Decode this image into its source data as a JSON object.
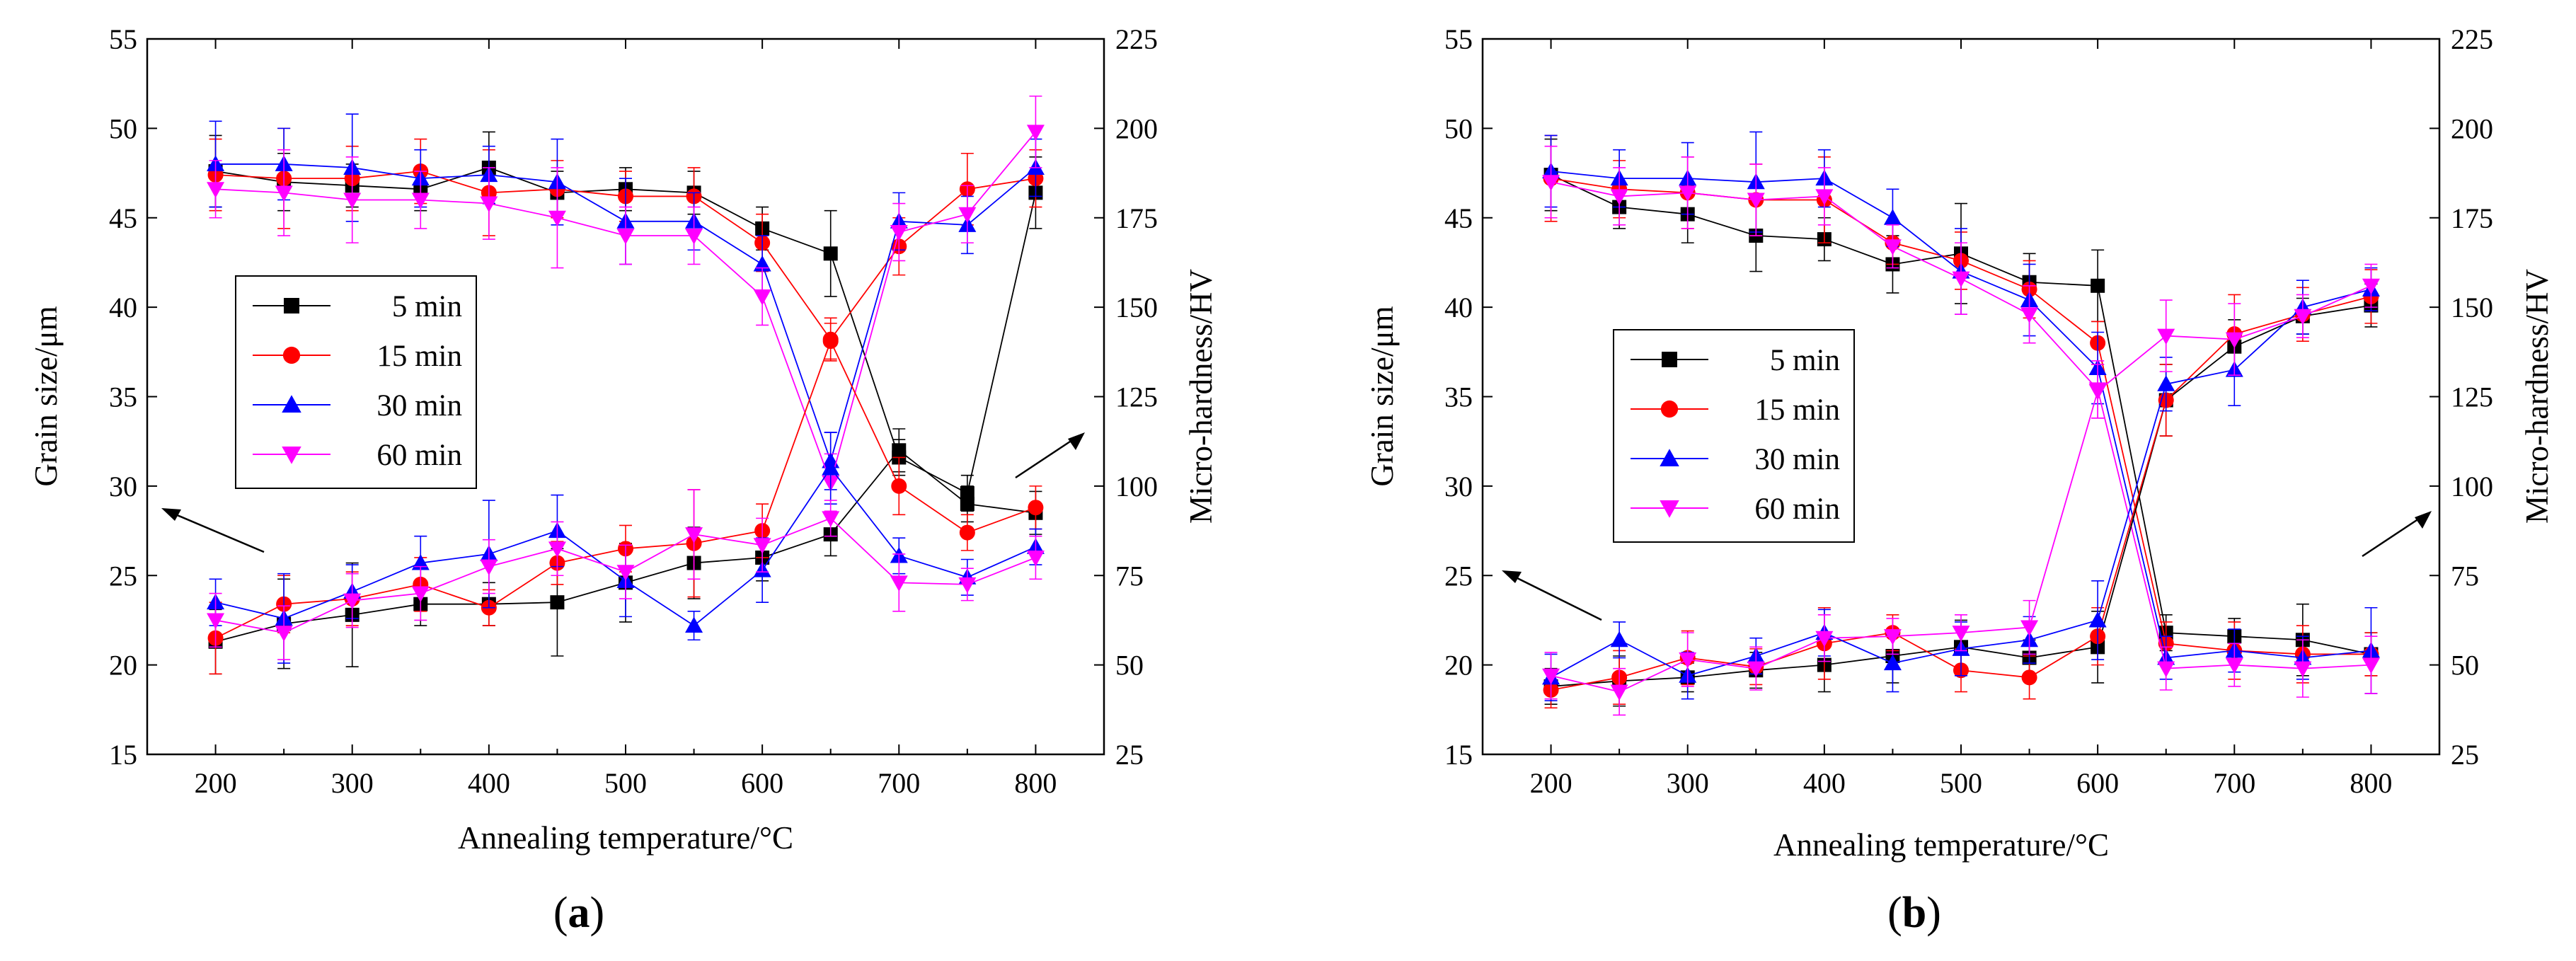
{
  "chart_data": [
    {
      "panel_label": "(a)",
      "panel_letter": "a",
      "type": "line",
      "xlabel": "Annealing temperature/°C",
      "ylabel_left": "Grain size/μm",
      "ylabel_right": "Micro-hardness/HV",
      "x": [
        200,
        250,
        300,
        350,
        400,
        450,
        500,
        550,
        600,
        650,
        700,
        750,
        800
      ],
      "xticks": [
        "200",
        "300",
        "400",
        "500",
        "600",
        "700",
        "800"
      ],
      "yticks_left": [
        "15",
        "20",
        "25",
        "30",
        "35",
        "40",
        "45",
        "50",
        "55"
      ],
      "yticks_right": [
        "25",
        "50",
        "75",
        "100",
        "125",
        "150",
        "175",
        "200",
        "225"
      ],
      "xlim": [
        150,
        850
      ],
      "ylim_left": [
        15,
        55
      ],
      "ylim_right": [
        25,
        225
      ],
      "legend": [
        "5 min",
        "15 min",
        "30 min",
        "60 min"
      ],
      "legend_position": "middle-left",
      "hardness_series": [
        {
          "name": "5 min",
          "color": "#000000",
          "marker": "square",
          "values": [
            188,
            185,
            184,
            183,
            189,
            182,
            183,
            182,
            172,
            165,
            108,
            98,
            182
          ],
          "errors": [
            10,
            8,
            6,
            6,
            10,
            6,
            6,
            6,
            6,
            12,
            5,
            5,
            10
          ]
        },
        {
          "name": "15 min",
          "color": "#ff0000",
          "marker": "circle",
          "values": [
            187,
            186,
            186,
            188,
            182,
            183,
            181,
            181,
            168,
            141,
            167,
            183,
            186
          ],
          "errors": [
            10,
            14,
            9,
            9,
            12,
            8,
            7,
            8,
            8,
            6,
            8,
            10,
            8
          ]
        },
        {
          "name": "30 min",
          "color": "#0000ff",
          "marker": "triangle-up",
          "values": [
            190,
            190,
            189,
            186,
            187,
            185,
            174,
            174,
            162,
            107,
            174,
            173,
            189
          ],
          "errors": [
            12,
            10,
            15,
            8,
            8,
            12,
            12,
            8,
            8,
            8,
            8,
            8,
            8
          ]
        },
        {
          "name": "60 min",
          "color": "#ff00ff",
          "marker": "triangle-down",
          "values": [
            183,
            182,
            180,
            180,
            179,
            175,
            170,
            170,
            153,
            101,
            171,
            176,
            199
          ],
          "errors": [
            8,
            12,
            12,
            8,
            10,
            14,
            8,
            8,
            8,
            8,
            8,
            8,
            10
          ]
        }
      ],
      "grain_series": [
        {
          "name": "5 min",
          "color": "#000000",
          "marker": "square",
          "values": [
            21.3,
            22.3,
            22.8,
            23.4,
            23.4,
            23.5,
            24.6,
            25.7,
            26.0,
            27.3,
            32.0,
            29.0,
            28.5
          ],
          "errors": [
            1.8,
            2.5,
            2.9,
            1.2,
            1.2,
            3.0,
            2.2,
            2.0,
            1.3,
            1.2,
            1.2,
            1.0,
            1.2
          ]
        },
        {
          "name": "15 min",
          "color": "#ff0000",
          "marker": "circle",
          "values": [
            21.5,
            23.4,
            23.7,
            24.5,
            23.2,
            25.7,
            26.5,
            26.8,
            27.5,
            38.1,
            30.0,
            27.4,
            28.8
          ],
          "errors": [
            2.0,
            1.6,
            1.5,
            1.5,
            1.0,
            1.2,
            1.3,
            3.0,
            1.5,
            1.0,
            1.6,
            1.0,
            1.2
          ]
        },
        {
          "name": "30 min",
          "color": "#0000ff",
          "marker": "triangle-up",
          "values": [
            23.5,
            22.6,
            24.1,
            25.7,
            26.2,
            27.5,
            24.7,
            22.2,
            25.3,
            31.0,
            26.1,
            24.9,
            26.6
          ],
          "errors": [
            1.3,
            2.5,
            1.5,
            1.5,
            3.0,
            2.0,
            2.0,
            0.8,
            1.8,
            2.0,
            1.0,
            1.0,
            1.0
          ]
        },
        {
          "name": "60 min",
          "color": "#ff00ff",
          "marker": "triangle-down",
          "values": [
            22.5,
            21.8,
            23.6,
            24.0,
            25.5,
            26.5,
            25.2,
            27.3,
            26.7,
            28.2,
            24.6,
            24.5,
            26.0
          ],
          "errors": [
            1.5,
            1.5,
            1.5,
            1.5,
            1.5,
            1.5,
            1.5,
            2.5,
            1.5,
            1.0,
            1.6,
            0.9,
            1.2
          ]
        }
      ]
    },
    {
      "panel_label": "(b)",
      "panel_letter": "b",
      "type": "line",
      "xlabel": "Annealing temperature/°C",
      "ylabel_left": "Grain size/μm",
      "ylabel_right": "Micro-hardness/HV",
      "x": [
        200,
        250,
        300,
        350,
        400,
        450,
        500,
        550,
        600,
        650,
        700,
        750,
        800
      ],
      "xticks": [
        "200",
        "300",
        "400",
        "500",
        "600",
        "700",
        "800"
      ],
      "yticks_left": [
        "15",
        "20",
        "25",
        "30",
        "35",
        "40",
        "45",
        "50",
        "55"
      ],
      "yticks_right": [
        "25",
        "50",
        "75",
        "100",
        "125",
        "150",
        "175",
        "200",
        "225"
      ],
      "xlim": [
        150,
        850
      ],
      "ylim_left": [
        15,
        55
      ],
      "ylim_right": [
        25,
        225
      ],
      "legend": [
        "5 min",
        "15 min",
        "30 min",
        "60 min"
      ],
      "legend_position": "middle-left",
      "hardness_series": [
        {
          "name": "5 min",
          "color": "#000000",
          "marker": "square",
          "values": [
            187,
            178,
            176,
            170,
            169,
            162,
            165,
            157,
            156,
            59,
            58,
            57,
            53
          ],
          "errors": [
            10,
            6,
            8,
            10,
            6,
            8,
            14,
            8,
            10,
            5,
            5,
            10,
            6
          ]
        },
        {
          "name": "15 min",
          "color": "#ff0000",
          "marker": "circle",
          "values": [
            186,
            183,
            182,
            180,
            180,
            168,
            163,
            155,
            140,
            56,
            54,
            53,
            53
          ],
          "errors": [
            12,
            8,
            10,
            10,
            12,
            6,
            8,
            8,
            6,
            6,
            8,
            8,
            6
          ]
        },
        {
          "name": "30 min",
          "color": "#0000ff",
          "marker": "triangle-up",
          "values": [
            188,
            186,
            186,
            185,
            186,
            175,
            160,
            152,
            133,
            52,
            54,
            52,
            54
          ],
          "errors": [
            10,
            8,
            10,
            14,
            8,
            8,
            12,
            10,
            10,
            6,
            6,
            6,
            12
          ]
        },
        {
          "name": "60 min",
          "color": "#ff00ff",
          "marker": "triangle-down",
          "values": [
            185,
            181,
            182,
            180,
            181,
            167,
            158,
            148,
            127,
            49,
            50,
            49,
            50
          ],
          "errors": [
            10,
            8,
            10,
            10,
            8,
            6,
            10,
            8,
            8,
            6,
            6,
            8,
            8
          ]
        }
      ],
      "grain_series": [
        {
          "name": "5 min",
          "color": "#000000",
          "marker": "square",
          "values": [
            18.8,
            19.1,
            19.3,
            19.7,
            20.0,
            20.5,
            21.0,
            20.4,
            21.0,
            34.8,
            37.8,
            39.5,
            40.1
          ],
          "errors": [
            1.0,
            1.4,
            0.8,
            1.0,
            1.5,
            1.5,
            1.5,
            1.0,
            2.0,
            2.0,
            1.5,
            1.0,
            1.2
          ]
        },
        {
          "name": "15 min",
          "color": "#ff0000",
          "marker": "circle",
          "values": [
            18.6,
            19.3,
            20.4,
            19.9,
            21.2,
            21.8,
            19.7,
            19.3,
            21.6,
            34.8,
            38.5,
            39.6,
            40.6
          ],
          "errors": [
            1.0,
            1.5,
            1.5,
            1.0,
            2.0,
            1.0,
            1.2,
            1.2,
            1.6,
            2.0,
            2.2,
            1.5,
            1.5
          ]
        },
        {
          "name": "30 min",
          "color": "#0000ff",
          "marker": "triangle-up",
          "values": [
            19.3,
            21.4,
            19.4,
            20.5,
            21.8,
            20.1,
            20.9,
            21.4,
            22.5,
            35.7,
            36.5,
            40.0,
            41.0
          ],
          "errors": [
            1.3,
            1.0,
            1.3,
            1.0,
            1.3,
            1.6,
            1.5,
            1.3,
            2.2,
            1.5,
            2.0,
            1.5,
            1.2
          ]
        },
        {
          "name": "60 min",
          "color": "#ff00ff",
          "marker": "triangle-down",
          "values": [
            19.4,
            18.5,
            20.3,
            19.8,
            21.5,
            21.6,
            21.8,
            22.1,
            35.3,
            38.4,
            38.2,
            39.5,
            41.2
          ],
          "errors": [
            1.3,
            1.3,
            1.5,
            1.2,
            1.3,
            1.0,
            1.0,
            1.5,
            1.5,
            2.0,
            2.0,
            1.2,
            1.2
          ]
        }
      ]
    }
  ]
}
